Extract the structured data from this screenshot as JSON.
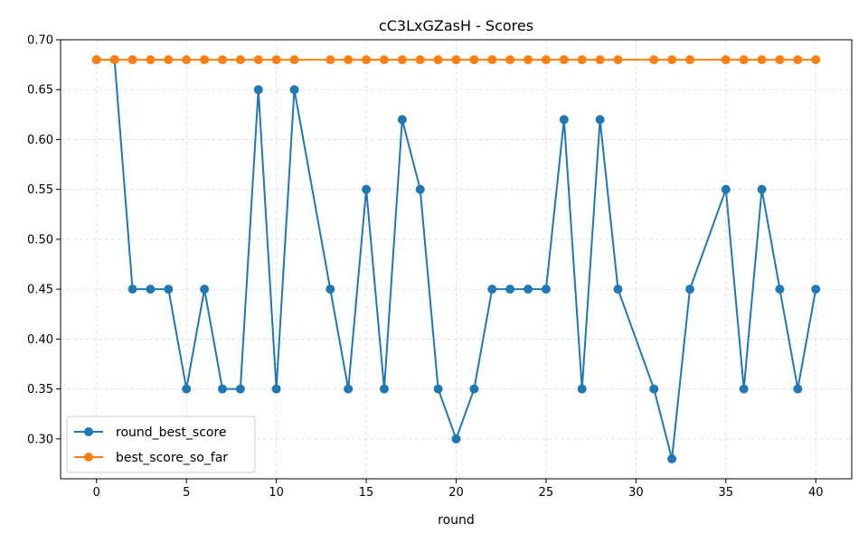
{
  "chart_data": {
    "type": "line",
    "title": "cC3LxGZasH - Scores",
    "xlabel": "round",
    "ylabel": "",
    "xlim": [
      -2,
      42
    ],
    "ylim": [
      0.26,
      0.7
    ],
    "xticks": [
      0,
      5,
      10,
      15,
      20,
      25,
      30,
      35,
      40
    ],
    "yticks": [
      0.3,
      0.35,
      0.4,
      0.45,
      0.5,
      0.55,
      0.6,
      0.65,
      0.7
    ],
    "grid": true,
    "legend_position": "lower-left",
    "series": [
      {
        "name": "round_best_score",
        "color": "#1f77b4",
        "x": [
          0,
          1,
          2,
          3,
          4,
          5,
          6,
          7,
          8,
          9,
          10,
          11,
          13,
          14,
          15,
          16,
          17,
          18,
          19,
          20,
          21,
          22,
          23,
          24,
          25,
          26,
          27,
          28,
          29,
          31,
          32,
          33,
          35,
          36,
          37,
          38,
          39,
          40
        ],
        "y": [
          0.68,
          0.68,
          0.45,
          0.45,
          0.45,
          0.35,
          0.45,
          0.35,
          0.35,
          0.65,
          0.35,
          0.65,
          0.45,
          0.35,
          0.55,
          0.35,
          0.62,
          0.55,
          0.35,
          0.3,
          0.35,
          0.45,
          0.45,
          0.45,
          0.45,
          0.62,
          0.35,
          0.62,
          0.45,
          0.35,
          0.28,
          0.45,
          0.55,
          0.35,
          0.55,
          0.45,
          0.35,
          0.45
        ]
      },
      {
        "name": "best_score_so_far",
        "color": "#ff7f0e",
        "x": [
          0,
          1,
          2,
          3,
          4,
          5,
          6,
          7,
          8,
          9,
          10,
          11,
          13,
          14,
          15,
          16,
          17,
          18,
          19,
          20,
          21,
          22,
          23,
          24,
          25,
          26,
          27,
          28,
          29,
          31,
          32,
          33,
          35,
          36,
          37,
          38,
          39,
          40
        ],
        "y": [
          0.68,
          0.68,
          0.68,
          0.68,
          0.68,
          0.68,
          0.68,
          0.68,
          0.68,
          0.68,
          0.68,
          0.68,
          0.68,
          0.68,
          0.68,
          0.68,
          0.68,
          0.68,
          0.68,
          0.68,
          0.68,
          0.68,
          0.68,
          0.68,
          0.68,
          0.68,
          0.68,
          0.68,
          0.68,
          0.68,
          0.68,
          0.68,
          0.68,
          0.68,
          0.68,
          0.68,
          0.68,
          0.68
        ]
      }
    ]
  }
}
